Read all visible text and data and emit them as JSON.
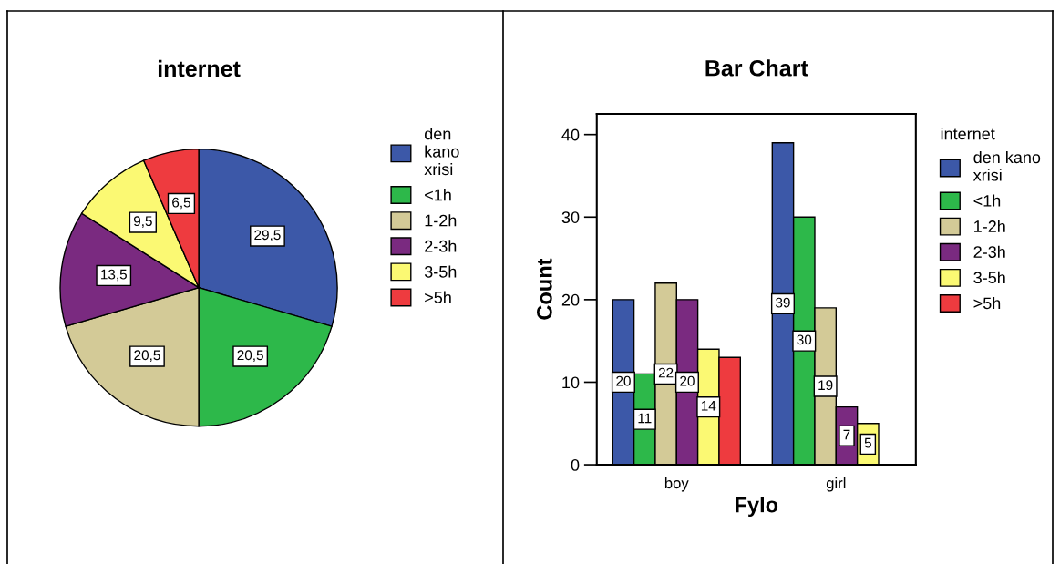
{
  "chart_data": [
    {
      "type": "pie",
      "title": "internet",
      "categories": [
        "den kano xrisi",
        "<1h",
        "1-2h",
        "2-3h",
        "3-5h",
        ">5h"
      ],
      "values": [
        29.5,
        20.5,
        20.5,
        13.5,
        9.5,
        6.5
      ],
      "colors": [
        "#3c58a8",
        "#2db84a",
        "#d3ca97",
        "#7a2a80",
        "#fbf973",
        "#ee3b3f"
      ],
      "value_labels": [
        "29,5",
        "20,5",
        "20,5",
        "13,5",
        "9,5",
        "6,5"
      ],
      "legend": "right"
    },
    {
      "type": "bar",
      "title": "Bar Chart",
      "xlabel": "Fylo",
      "ylabel": "Count",
      "legend_title": "internet",
      "categories": [
        "boy",
        "girl"
      ],
      "ylim": [
        0,
        42.5
      ],
      "yticks": [
        0,
        10,
        20,
        30,
        40
      ],
      "legend": "right",
      "grid": false,
      "series": [
        {
          "name": "den kano xrisi",
          "color": "#3c58a8",
          "values": [
            20,
            39
          ],
          "value_labels": [
            "20",
            "39"
          ]
        },
        {
          "name": "<1h",
          "color": "#2db84a",
          "values": [
            11,
            30
          ],
          "value_labels": [
            "11",
            "30"
          ]
        },
        {
          "name": "1-2h",
          "color": "#d3ca97",
          "values": [
            22,
            19
          ],
          "value_labels": [
            "22",
            "19"
          ]
        },
        {
          "name": "2-3h",
          "color": "#7a2a80",
          "values": [
            20,
            7
          ],
          "value_labels": [
            "20",
            "7"
          ]
        },
        {
          "name": "3-5h",
          "color": "#fbf973",
          "values": [
            14,
            5
          ],
          "value_labels": [
            "14",
            "5"
          ]
        },
        {
          "name": ">5h",
          "color": "#ee3b3f",
          "values": [
            13,
            null
          ],
          "value_labels": [
            null,
            null
          ]
        }
      ]
    }
  ]
}
